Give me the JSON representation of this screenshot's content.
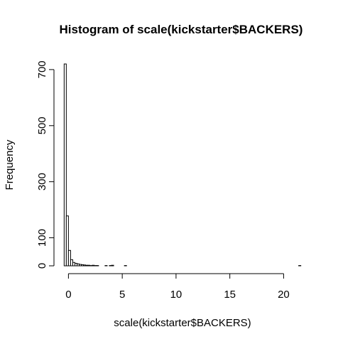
{
  "chart_data": {
    "type": "histogram",
    "title": "Histogram of scale(kickstarter$BACKERS)",
    "x_label": "scale(kickstarter$BACKERS)",
    "y_label": "Frequency",
    "bins": [
      -0.4,
      -0.2,
      0,
      0.2,
      0.4,
      0.6,
      0.8,
      1,
      1.2,
      1.4,
      1.6,
      1.8,
      2,
      2.2,
      2.4,
      2.6,
      2.8,
      3,
      3.2,
      3.4,
      3.6,
      3.8,
      4,
      4.2,
      4.4,
      4.6,
      4.8,
      5,
      5.2,
      5.4,
      5.6,
      5.8,
      6,
      6.2,
      6.4,
      6.6,
      6.8,
      7,
      7.2,
      7.4,
      7.6,
      7.8,
      8,
      8.2,
      8.4,
      8.6,
      8.8,
      9,
      9.2,
      9.4,
      9.6,
      9.8,
      10,
      10.2,
      10.4,
      10.6,
      10.8,
      11,
      11.2,
      11.4,
      11.6,
      11.8,
      12,
      12.2,
      12.4,
      12.6,
      12.8,
      13,
      13.2,
      13.4,
      13.6,
      13.8,
      14,
      14.2,
      14.4,
      14.6,
      14.8,
      15,
      15.2,
      15.4,
      15.6,
      15.8,
      16,
      16.2,
      16.4,
      16.6,
      16.8,
      17,
      17.2,
      17.4,
      17.6,
      17.8,
      18,
      18.2,
      18.4,
      18.6,
      18.8,
      19,
      19.2,
      19.4,
      19.6,
      19.8,
      20,
      20.2,
      20.4,
      20.6,
      20.8,
      21,
      21.2,
      21.4,
      21.6
    ],
    "values": [
      720,
      178,
      55,
      22,
      12,
      9,
      7,
      5,
      4,
      3,
      2,
      2,
      1,
      2,
      1,
      1,
      0,
      0,
      0,
      1,
      0,
      1,
      2,
      0,
      0,
      0,
      0,
      0,
      1,
      0,
      0,
      0,
      0,
      0,
      0,
      0,
      0,
      0,
      0,
      0,
      0,
      0,
      0,
      0,
      0,
      0,
      0,
      0,
      0,
      0,
      0,
      0,
      0,
      0,
      0,
      0,
      0,
      0,
      0,
      0,
      0,
      0,
      0,
      0,
      0,
      0,
      0,
      0,
      0,
      0,
      0,
      0,
      0,
      0,
      0,
      0,
      0,
      0,
      0,
      0,
      0,
      0,
      0,
      0,
      0,
      0,
      0,
      0,
      0,
      0,
      0,
      0,
      0,
      0,
      0,
      0,
      0,
      0,
      0,
      0,
      0,
      0,
      0,
      0,
      0,
      0,
      0,
      0,
      0,
      1
    ],
    "color": "#ffffff",
    "xlim": [
      -1.28,
      22.48
    ],
    "xticks": [
      0,
      5,
      10,
      15,
      20
    ],
    "ylim": [
      0,
      720
    ],
    "yticks": [
      0,
      100,
      300,
      500,
      700
    ]
  }
}
